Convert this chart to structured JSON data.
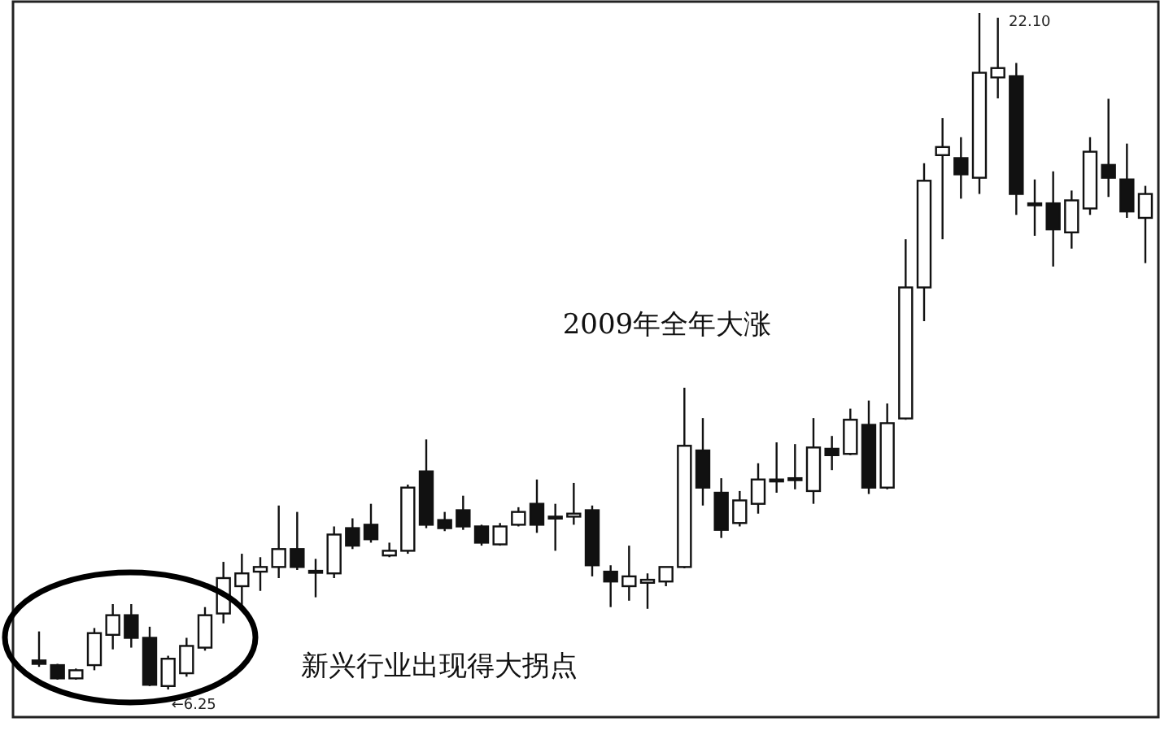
{
  "chart_data": {
    "type": "candlestick",
    "categories": [
      null,
      null,
      null,
      null,
      null,
      null,
      null,
      null,
      null,
      null,
      null,
      null,
      null,
      null,
      null,
      null,
      null,
      null,
      null,
      null,
      null,
      null,
      null,
      null,
      null,
      null,
      null,
      null,
      null,
      null,
      null,
      null,
      null,
      null,
      null,
      null,
      null,
      null,
      null,
      null,
      null,
      null,
      null,
      null,
      null,
      null,
      null,
      null,
      null,
      null,
      null,
      null,
      null,
      null,
      null,
      null,
      null,
      null,
      null,
      null,
      null
    ],
    "ohlc": [
      [
        6.93,
        7.61,
        6.78,
        6.85
      ],
      [
        6.82,
        6.85,
        6.48,
        6.51
      ],
      [
        6.51,
        6.74,
        6.48,
        6.7
      ],
      [
        6.82,
        7.69,
        6.7,
        7.57
      ],
      [
        7.53,
        8.25,
        7.19,
        7.99
      ],
      [
        7.99,
        8.25,
        7.23,
        7.46
      ],
      [
        7.46,
        7.72,
        6.33,
        6.36
      ],
      [
        6.33,
        7.04,
        6.25,
        6.97
      ],
      [
        6.63,
        7.46,
        6.55,
        7.27
      ],
      [
        7.23,
        8.18,
        7.16,
        7.99
      ],
      [
        8.03,
        9.24,
        7.8,
        8.86
      ],
      [
        8.67,
        9.43,
        8.2,
        8.97
      ],
      [
        9.01,
        9.35,
        8.56,
        9.12
      ],
      [
        9.12,
        10.56,
        8.86,
        9.54
      ],
      [
        9.54,
        10.41,
        9.05,
        9.12
      ],
      [
        9.01,
        9.31,
        8.41,
        9.03
      ],
      [
        8.97,
        10.07,
        8.86,
        9.88
      ],
      [
        10.03,
        10.26,
        9.54,
        9.62
      ],
      [
        10.11,
        10.6,
        9.69,
        9.77
      ],
      [
        9.39,
        9.69,
        9.35,
        9.5
      ],
      [
        9.5,
        11.05,
        9.43,
        10.98
      ],
      [
        11.36,
        12.11,
        10.03,
        10.11
      ],
      [
        10.22,
        10.41,
        9.96,
        10.03
      ],
      [
        10.45,
        10.79,
        9.99,
        10.07
      ],
      [
        10.07,
        10.11,
        9.62,
        9.69
      ],
      [
        9.65,
        10.15,
        9.62,
        10.07
      ],
      [
        10.11,
        10.52,
        10.07,
        10.41
      ],
      [
        10.6,
        11.17,
        9.92,
        10.11
      ],
      [
        10.3,
        10.6,
        9.5,
        10.28
      ],
      [
        10.3,
        11.09,
        10.11,
        10.37
      ],
      [
        10.45,
        10.56,
        8.9,
        9.16
      ],
      [
        9.01,
        9.16,
        8.18,
        8.78
      ],
      [
        8.67,
        9.62,
        8.33,
        8.9
      ],
      [
        8.75,
        8.97,
        8.14,
        8.82
      ],
      [
        8.78,
        9.12,
        8.67,
        9.12
      ],
      [
        9.12,
        13.32,
        9.09,
        11.96
      ],
      [
        11.85,
        12.61,
        10.56,
        10.98
      ],
      [
        10.86,
        11.2,
        9.8,
        9.99
      ],
      [
        10.15,
        10.9,
        10.07,
        10.68
      ],
      [
        10.6,
        11.55,
        10.37,
        11.17
      ],
      [
        11.17,
        12.04,
        10.86,
        11.15
      ],
      [
        11.17,
        12.0,
        10.94,
        11.2
      ],
      [
        10.9,
        12.61,
        10.6,
        11.92
      ],
      [
        11.89,
        12.19,
        11.39,
        11.74
      ],
      [
        11.77,
        12.83,
        11.74,
        12.57
      ],
      [
        12.45,
        13.02,
        10.83,
        10.98
      ],
      [
        10.98,
        12.95,
        10.94,
        12.49
      ],
      [
        12.6,
        16.8,
        12.57,
        15.67
      ],
      [
        15.67,
        18.58,
        14.88,
        18.17
      ],
      [
        18.77,
        19.64,
        16.8,
        18.96
      ],
      [
        18.7,
        19.19,
        17.75,
        18.32
      ],
      [
        18.24,
        22.1,
        17.86,
        20.7
      ],
      [
        20.59,
        21.99,
        20.1,
        20.81
      ],
      [
        20.62,
        20.93,
        17.37,
        17.86
      ],
      [
        17.64,
        18.2,
        16.88,
        17.62
      ],
      [
        17.64,
        18.39,
        16.16,
        17.03
      ],
      [
        16.96,
        17.94,
        16.58,
        17.71
      ],
      [
        17.52,
        19.19,
        17.37,
        18.85
      ],
      [
        18.54,
        20.09,
        17.79,
        18.24
      ],
      [
        18.2,
        19.04,
        17.3,
        17.45
      ],
      [
        17.3,
        18.05,
        16.24,
        17.86
      ]
    ],
    "annotations": [
      "22.10",
      "←6.25",
      "2009年全年大涨",
      "新兴行业出现得大拐点"
    ]
  }
}
